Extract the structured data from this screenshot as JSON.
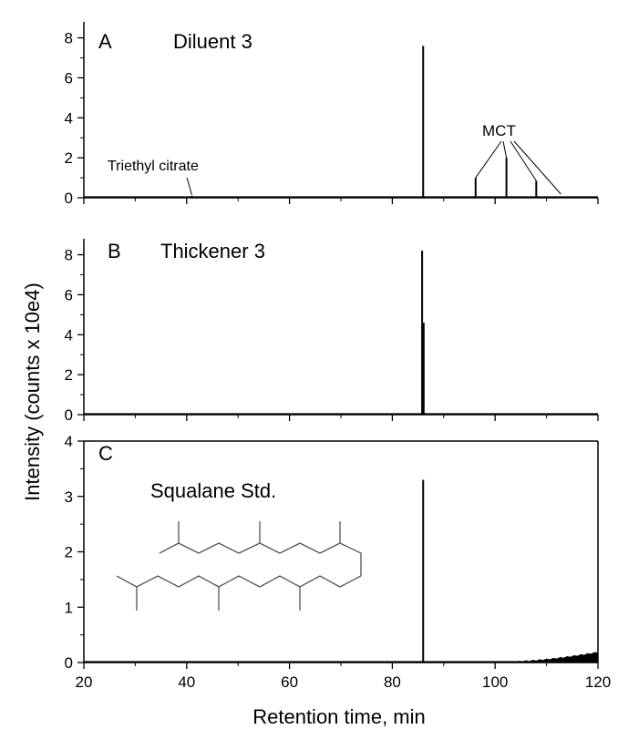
{
  "figure": {
    "ylabel": "Intensity (counts x 10e4)",
    "xlabel": "Retention time, min",
    "xticks": [
      "20",
      "40",
      "60",
      "80",
      "100",
      "120"
    ]
  },
  "chart_data": [
    {
      "type": "line",
      "panel_label": "A",
      "title": "Diluent 3",
      "xlim": [
        20,
        120
      ],
      "ylim": [
        0,
        8.8
      ],
      "yticks": [
        "0",
        "2",
        "4",
        "6",
        "8"
      ],
      "peaks": [
        {
          "x": 41.0,
          "y": 0.1
        },
        {
          "x": 86.0,
          "y": 7.6
        },
        {
          "x": 96.2,
          "y": 1.0
        },
        {
          "x": 102.2,
          "y": 2.0
        },
        {
          "x": 108.0,
          "y": 0.85
        },
        {
          "x": 112.8,
          "y": 0.05
        }
      ],
      "annotations": [
        {
          "text": "Triethyl citrate",
          "target_x": 41.0
        },
        {
          "text": "MCT",
          "target_x": [
            96.2,
            102.2,
            108.0,
            112.8
          ]
        }
      ]
    },
    {
      "type": "line",
      "panel_label": "B",
      "title": "Thickener 3",
      "xlim": [
        20,
        120
      ],
      "ylim": [
        0,
        8.8
      ],
      "yticks": [
        "0",
        "2",
        "4",
        "6",
        "8"
      ],
      "peaks": [
        {
          "x": 85.8,
          "y": 8.2
        },
        {
          "x": 86.1,
          "y": 4.6
        }
      ]
    },
    {
      "type": "line",
      "panel_label": "C",
      "title": "Squalane Std.",
      "xlim": [
        20,
        120
      ],
      "ylim": [
        0,
        4
      ],
      "yticks": [
        "0",
        "1",
        "2",
        "3",
        "4"
      ],
      "peaks": [
        {
          "x": 86.0,
          "y": 3.3
        }
      ],
      "baseline_rise": {
        "from_x": 100,
        "to_x": 120,
        "to_y": 0.18
      },
      "structure": "squalane"
    }
  ]
}
